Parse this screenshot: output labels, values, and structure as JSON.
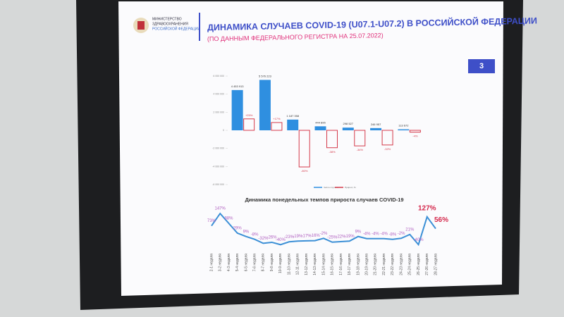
{
  "header": {
    "ministry": [
      "МИНИСТЕРСТВО",
      "ЗДРАВООХРАНЕНИЯ",
      "РОССИЙСКОЙ ФЕДЕРАЦИИ"
    ],
    "title": "ДИНАМИКА СЛУЧАЕВ COVID-19 (U07.1-U07.2) В РОССИЙСКОЙ ФЕДЕРАЦИИ",
    "subtitle": "(ПО ДАННЫМ ФЕДЕРАЛЬНОГО РЕГИСТРА НА 25.07.2022)",
    "page": "3"
  },
  "chart_data": [
    {
      "type": "bar",
      "categories": [
        null,
        null,
        null,
        null,
        null,
        null,
        null
      ],
      "series": [
        {
          "name": "Число случаев",
          "color": "#2f8fe0",
          "values": [
            4453913,
            5576223,
            1187358,
            444895,
            298527,
            246957,
            113672
          ],
          "value_labels": [
            "4 453 913",
            "5 576 223",
            "1 187 358",
            "444 895",
            "298 527",
            "246 957",
            "113 672"
          ]
        },
        {
          "name": "Прирост, %",
          "color": "#d43a4a",
          "axis": "y2",
          "values": [
            25,
            17,
            -80,
            -38,
            -34,
            -32,
            -4
          ],
          "value_labels": [
            "+25%",
            "+17%",
            "-80%",
            "-38%",
            "-34%",
            "-32%",
            "-4%"
          ]
        }
      ],
      "ylim": [
        -6000000,
        6000000
      ],
      "yticks": [
        {
          "value": 6000000,
          "label": "6 000 000"
        },
        {
          "value": 4000000,
          "label": "4 000 000"
        },
        {
          "value": 2000000,
          "label": "2 000 000"
        },
        0,
        {
          "value": -2000000,
          "label": "-2 000 000"
        },
        {
          "value": -4000000,
          "label": "-4 000 000"
        },
        {
          "value": -6000000,
          "label": "-6 000 000"
        }
      ],
      "y2lim": [
        -100,
        100
      ],
      "legend": "bottom-right"
    },
    {
      "type": "line",
      "title": "Динамика понедельных темпов прироста случаев COVID-19",
      "categories": [
        "2-1 неделя",
        "3-2 неделя",
        "4-3 неделя",
        "5-4 неделя",
        "6-5 неделя",
        "7-6 неделя",
        "8-7 неделя",
        "9-8 неделя",
        "10-9 неделя",
        "11-10 неделя",
        "12-11 неделя",
        "13-12 неделя",
        "14-13 неделя",
        "15-14 неделя",
        "16-15 неделя",
        "17-16 неделя",
        "18-17 неделя",
        "19-18 неделя",
        "20-19 неделя",
        "21-20 неделя",
        "22-21 неделя",
        "23-22 неделя",
        "24-23 неделя",
        "25-24 неделя",
        "26-25 неделя",
        "27-26 неделя",
        "28-27 неделя"
      ],
      "series": [
        {
          "name": "Темп прироста",
          "color": "#3b8fd6",
          "values": [
            73,
            147,
            88,
            29,
            9,
            -8,
            -32,
            -26,
            -40,
            -23,
            -19,
            -17,
            -16,
            -2,
            -25,
            -22,
            -19,
            9,
            -4,
            -4,
            -4,
            -8,
            -2,
            21,
            -40,
            127,
            56
          ],
          "value_labels": [
            "73%",
            "147%",
            "88%",
            "29%",
            "9%",
            "-8%",
            "-32%",
            "-26%",
            "-40%",
            "-23%",
            "-19%",
            "-17%",
            "-16%",
            "-2%",
            "-25%",
            "-22%",
            "-19%",
            "9%",
            "-4%",
            "-4%",
            "-4%",
            "-8%",
            "-2%",
            "21%",
            "-40%",
            "127%",
            "56%"
          ]
        }
      ],
      "ylim": [
        -60,
        160
      ]
    }
  ]
}
